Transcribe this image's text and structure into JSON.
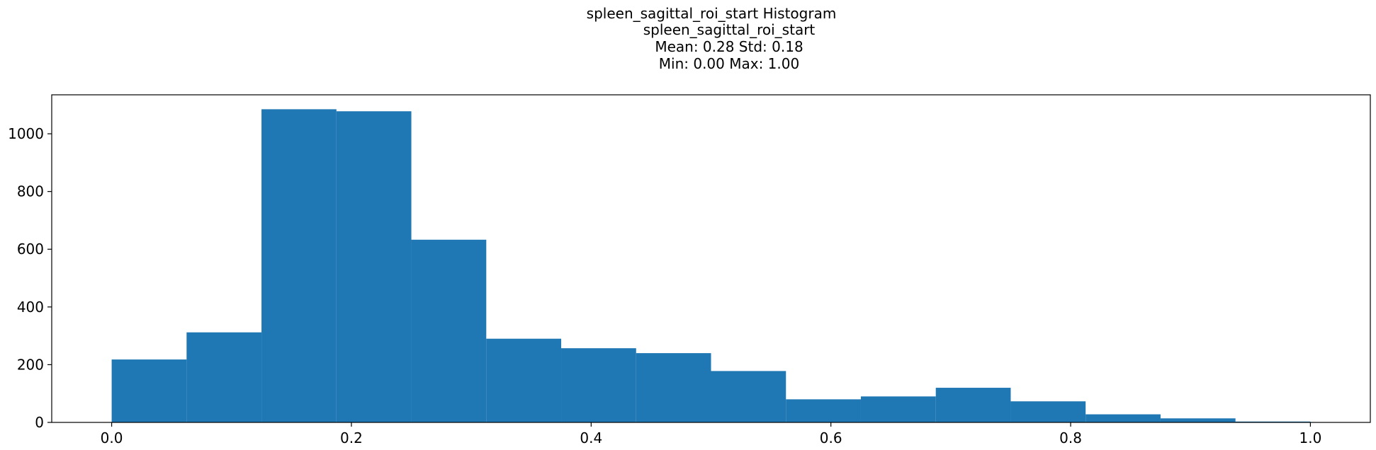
{
  "chart_data": {
    "type": "bar",
    "title_lines": [
      "spleen_sagittal_roi_start Histogram",
      "spleen_sagittal_roi_start",
      "Mean: 0.28 Std: 0.18",
      "Min: 0.00 Max: 1.00"
    ],
    "xlabel": "",
    "ylabel": "",
    "bin_edges": [
      0.0,
      0.0625,
      0.125,
      0.1875,
      0.25,
      0.3125,
      0.375,
      0.4375,
      0.5,
      0.5625,
      0.625,
      0.6875,
      0.75,
      0.8125,
      0.875,
      0.9375,
      1.0
    ],
    "values": [
      218,
      312,
      1085,
      1078,
      633,
      290,
      257,
      240,
      178,
      80,
      90,
      120,
      73,
      28,
      14,
      3
    ],
    "xlim": [
      -0.05,
      1.05
    ],
    "ylim": [
      0,
      1135
    ],
    "xticks": [
      0.0,
      0.2,
      0.4,
      0.6,
      0.8,
      1.0
    ],
    "xtick_labels": [
      "0.0",
      "0.2",
      "0.4",
      "0.6",
      "0.8",
      "1.0"
    ],
    "yticks": [
      0,
      200,
      400,
      600,
      800,
      1000
    ],
    "ytick_labels": [
      "0",
      "200",
      "400",
      "600",
      "800",
      "1000"
    ],
    "bar_color": "#1f77b4",
    "grid": false,
    "legend": false
  }
}
